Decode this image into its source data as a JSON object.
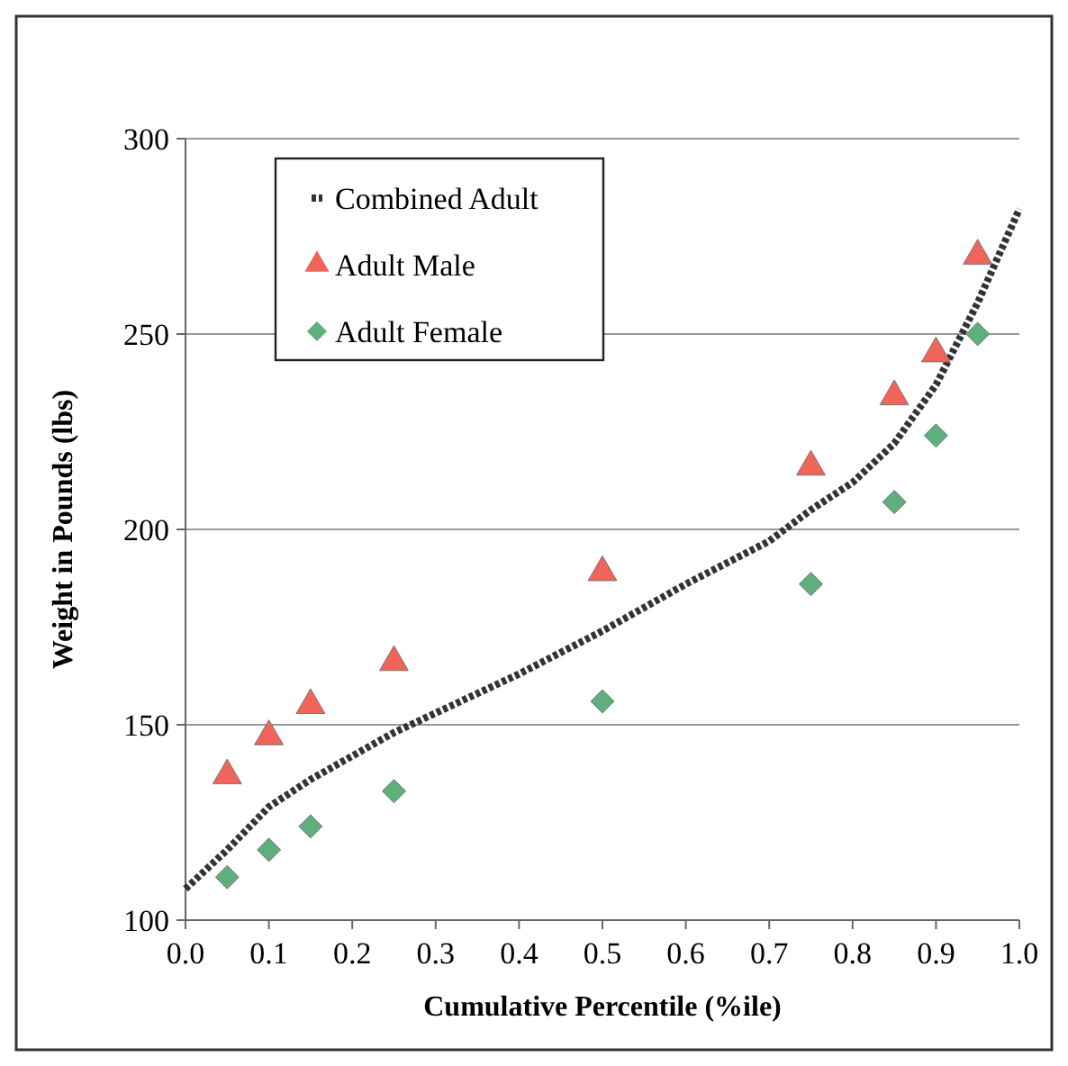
{
  "chart_data": {
    "type": "scatter",
    "xlabel": "Cumulative Percentile (%ile)",
    "ylabel": "Weight in Pounds (lbs)",
    "xlim": [
      0,
      1
    ],
    "xticks": [
      {
        "value": 0,
        "label": "0.0"
      },
      {
        "value": 0.1,
        "label": "0.1"
      },
      {
        "value": 0.2,
        "label": "0.2"
      },
      {
        "value": 0.3,
        "label": "0.3"
      },
      {
        "value": 0.4,
        "label": "0.4"
      },
      {
        "value": 0.5,
        "label": "0.5"
      },
      {
        "value": 0.6,
        "label": "0.6"
      },
      {
        "value": 0.7,
        "label": "0.7"
      },
      {
        "value": 0.8,
        "label": "0.8"
      },
      {
        "value": 0.9,
        "label": "0.9"
      },
      {
        "value": 1,
        "label": "1.0"
      }
    ],
    "ylim": [
      100,
      300
    ],
    "yticks": [
      100,
      150,
      200,
      250,
      300
    ],
    "grid": "y",
    "legend": "top left",
    "series": [
      {
        "name": "Combined Adult",
        "type": "line",
        "color": "#333333",
        "line_style": "dotted",
        "marker": "none",
        "x": [
          0,
          0.05,
          0.1,
          0.15,
          0.2,
          0.25,
          0.3,
          0.4,
          0.5,
          0.6,
          0.7,
          0.75,
          0.8,
          0.85,
          0.9,
          0.95,
          1.0
        ],
        "values": [
          108,
          118,
          129,
          136,
          142,
          148,
          153,
          163,
          174,
          186,
          197,
          205,
          212,
          222,
          237,
          258,
          282
        ]
      },
      {
        "name": "Adult Male",
        "color": "#f0645a",
        "marker": "triangle",
        "x": [
          0.05,
          0.1,
          0.15,
          0.25,
          0.5,
          0.75,
          0.85,
          0.9,
          0.95
        ],
        "values": [
          137,
          147,
          155,
          166,
          189,
          216,
          234,
          245,
          270
        ]
      },
      {
        "name": "Adult Female",
        "color": "#5faf7d",
        "marker": "diamond",
        "x": [
          0.05,
          0.1,
          0.15,
          0.25,
          0.5,
          0.75,
          0.85,
          0.9,
          0.95
        ],
        "values": [
          111,
          118,
          124,
          133,
          156,
          186,
          207,
          224,
          250
        ]
      }
    ]
  }
}
